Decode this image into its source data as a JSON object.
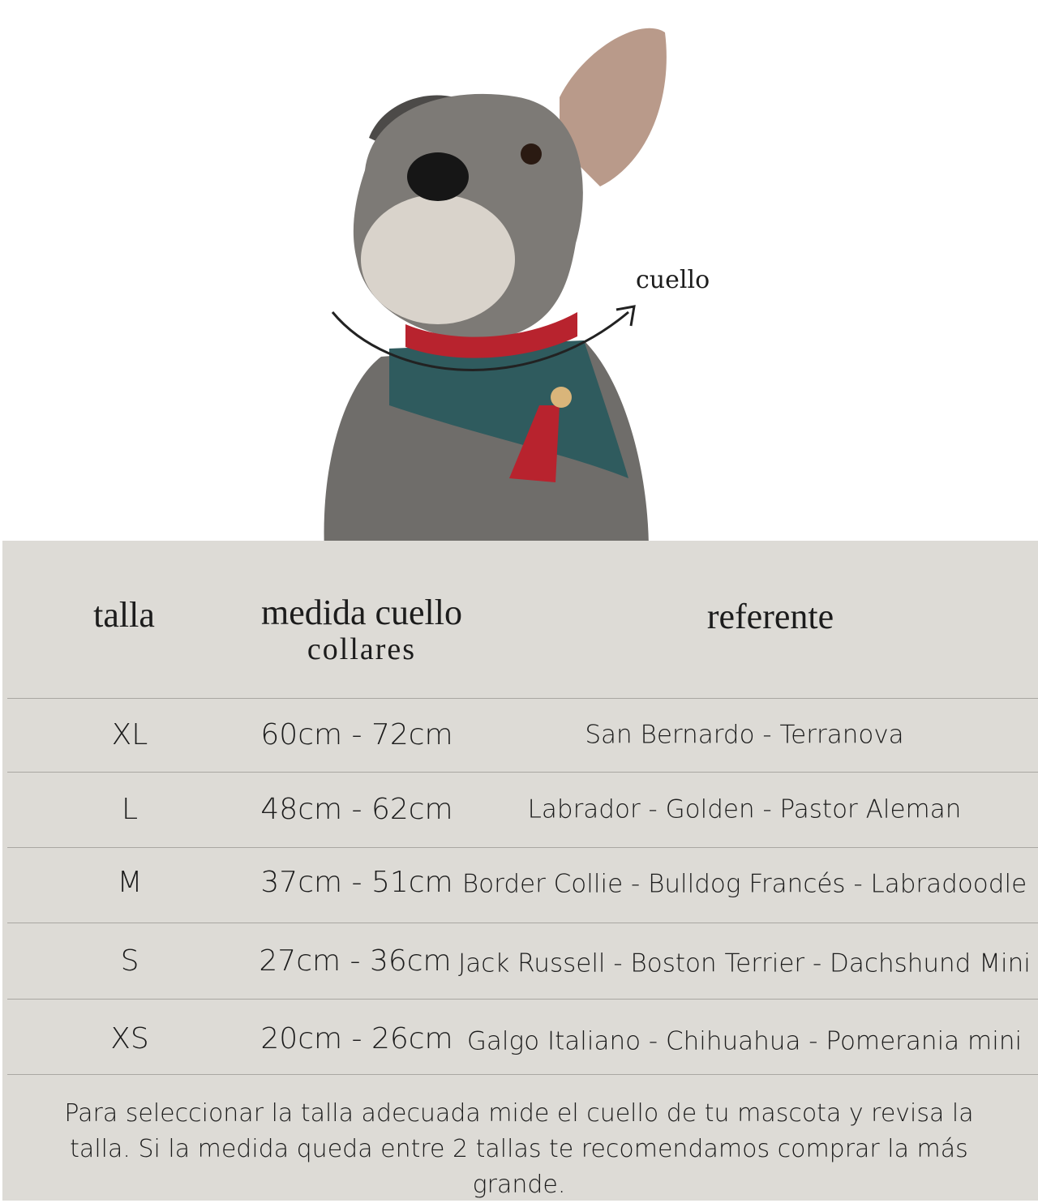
{
  "hero": {
    "annotation": "cuello",
    "colors": {
      "collar": "#b8232e",
      "fur": "#6f6d6a",
      "bandana": "#2f5b5e"
    }
  },
  "table": {
    "headers": {
      "size": "talla",
      "measure": "medida cuello",
      "measure_sub": "collares",
      "reference": "referente"
    },
    "rows": [
      {
        "size": "XL",
        "measure": "60cm - 72cm",
        "reference": "San Bernardo - Terranova"
      },
      {
        "size": "L",
        "measure": "48cm - 62cm",
        "reference": "Labrador - Golden - Pastor Aleman"
      },
      {
        "size": "M",
        "measure": "37cm - 51cm",
        "reference": "Border Collie - Bulldog Francés - Labradoodle"
      },
      {
        "size": "S",
        "measure": "27cm - 36cm",
        "reference": "Jack Russell - Boston Terrier - Dachshund Mini"
      },
      {
        "size": "XS",
        "measure": "20cm - 26cm",
        "reference": "Galgo Italiano - Chihuahua - Pomerania mini"
      }
    ]
  },
  "footer": {
    "note": "Para seleccionar la talla adecuada mide el cuello de tu mascota y revisa la talla. Si la medida queda entre 2 tallas te recomendamos comprar la más grande."
  },
  "colors": {
    "panel_bg": "#dddbd6",
    "text": "#1c1c1c",
    "rule": "#a9a7a2"
  }
}
